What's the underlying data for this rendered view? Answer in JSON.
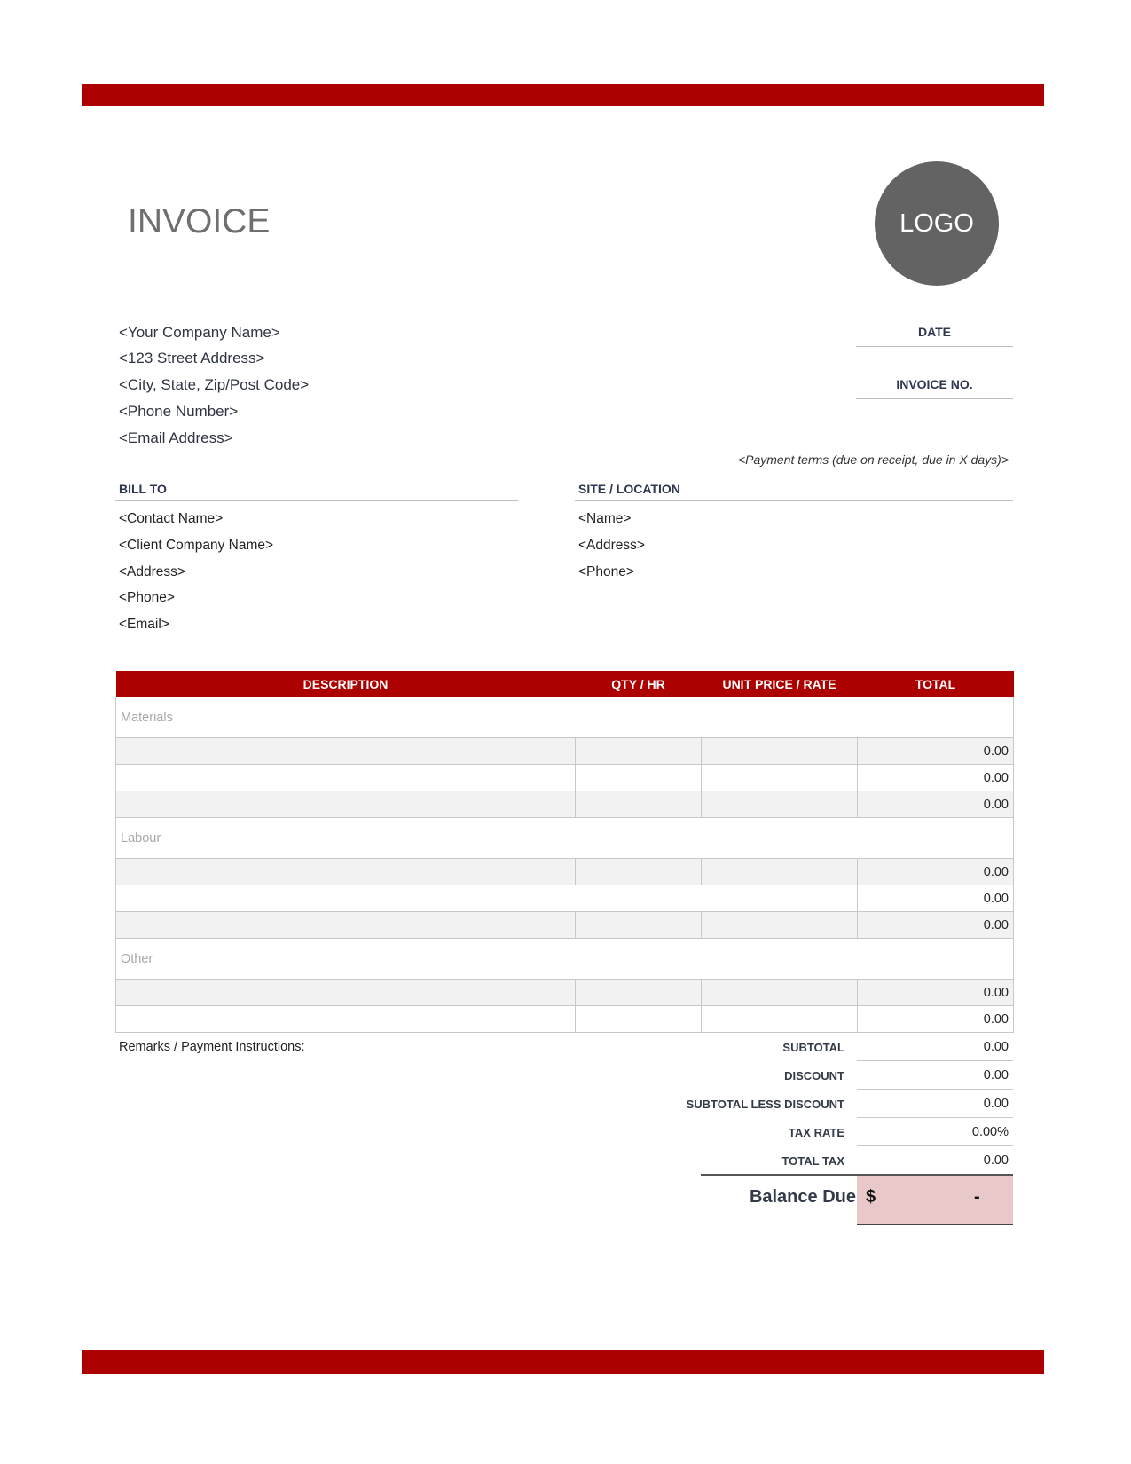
{
  "colors": {
    "accent": "#ad0000",
    "logo": "#636363",
    "balance_bg": "#e8c8c9"
  },
  "title": "INVOICE",
  "logo": "LOGO",
  "company": [
    "<Your Company Name>",
    "<123 Street Address>",
    "<City, State, Zip/Post Code>",
    "<Phone Number>",
    "<Email Address>"
  ],
  "date_label": "DATE",
  "invoice_no_label": "INVOICE NO.",
  "payment_terms": "<Payment terms (due on receipt, due in X days)>",
  "bill_to": {
    "label": "BILL TO",
    "lines": [
      "<Contact Name>",
      "<Client Company Name>",
      "<Address>",
      "<Phone>",
      "<Email>"
    ]
  },
  "site": {
    "label": "SITE / LOCATION",
    "lines": [
      "<Name>",
      "<Address>",
      "<Phone>"
    ]
  },
  "table": {
    "headers": [
      "DESCRIPTION",
      "QTY / HR",
      "UNIT PRICE / RATE",
      "TOTAL"
    ],
    "sections": {
      "materials": "Materials",
      "labour": "Labour",
      "other": "Other"
    },
    "totals": [
      "0.00",
      "0.00",
      "0.00",
      "0.00",
      "0.00",
      "0.00",
      "0.00",
      "0.00"
    ]
  },
  "remarks": "Remarks / Payment Instructions:",
  "summary": [
    {
      "label": "SUBTOTAL",
      "value": "0.00"
    },
    {
      "label": "DISCOUNT",
      "value": "0.00"
    },
    {
      "label": "SUBTOTAL LESS DISCOUNT",
      "value": "0.00"
    },
    {
      "label": "TAX RATE",
      "value": "0.00%"
    },
    {
      "label": "TOTAL TAX",
      "value": "0.00"
    }
  ],
  "balance": {
    "label": "Balance Due",
    "currency": "$",
    "value": "-"
  }
}
